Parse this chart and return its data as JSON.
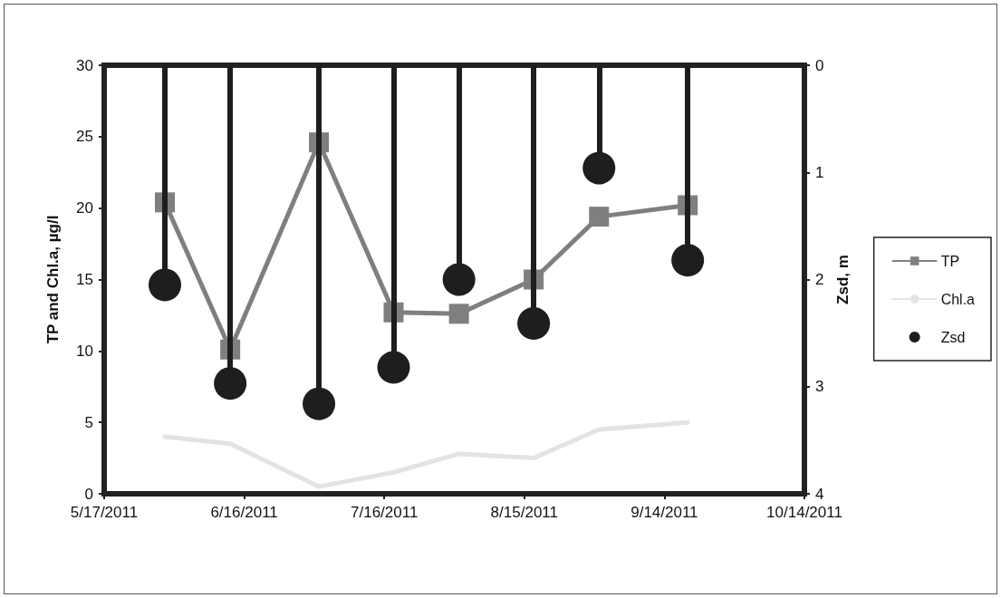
{
  "chart_data": {
    "type": "line",
    "ylabel": "TP and Chl.a, µg/l",
    "y2label": "Zsd, m",
    "x": [
      "2011-05-30",
      "2011-06-13",
      "2011-07-02",
      "2011-07-18",
      "2011-08-01",
      "2011-08-17",
      "2011-08-31",
      "2011-09-19"
    ],
    "series": [
      {
        "name": "TP",
        "color": "#7f7f7f",
        "marker": "square",
        "values": [
          20.4,
          10.1,
          24.6,
          12.7,
          12.6,
          15.0,
          19.4,
          20.2
        ]
      },
      {
        "name": "Chl.a",
        "color": "#e3e3e3",
        "marker": "none",
        "values": [
          4.0,
          3.5,
          0.5,
          1.5,
          2.8,
          2.5,
          4.5,
          5.0
        ]
      },
      {
        "name": "Zsd",
        "type": "lollipop",
        "axis": "y2",
        "color": "#1e1e1e",
        "marker": "circle",
        "values": [
          2.05,
          2.97,
          3.16,
          2.82,
          2.0,
          2.41,
          0.96,
          1.82
        ]
      }
    ],
    "xlim": [
      "2011-05-17",
      "2011-10-14"
    ],
    "xticks": [
      {
        "value": "2011-05-17",
        "label": "5/17/2011"
      },
      {
        "value": "2011-06-16",
        "label": "6/16/2011"
      },
      {
        "value": "2011-07-16",
        "label": "7/16/2011"
      },
      {
        "value": "2011-08-15",
        "label": "8/15/2011"
      },
      {
        "value": "2011-09-14",
        "label": "9/14/2011"
      },
      {
        "value": "2011-10-14",
        "label": "10/14/2011"
      }
    ],
    "ylim": [
      0,
      30
    ],
    "yticks": [
      0,
      5,
      10,
      15,
      20,
      25,
      30
    ],
    "y2lim": [
      4,
      0
    ],
    "y2ticks": [
      0,
      1,
      2,
      3,
      4
    ],
    "grid": false,
    "legend": "right"
  }
}
